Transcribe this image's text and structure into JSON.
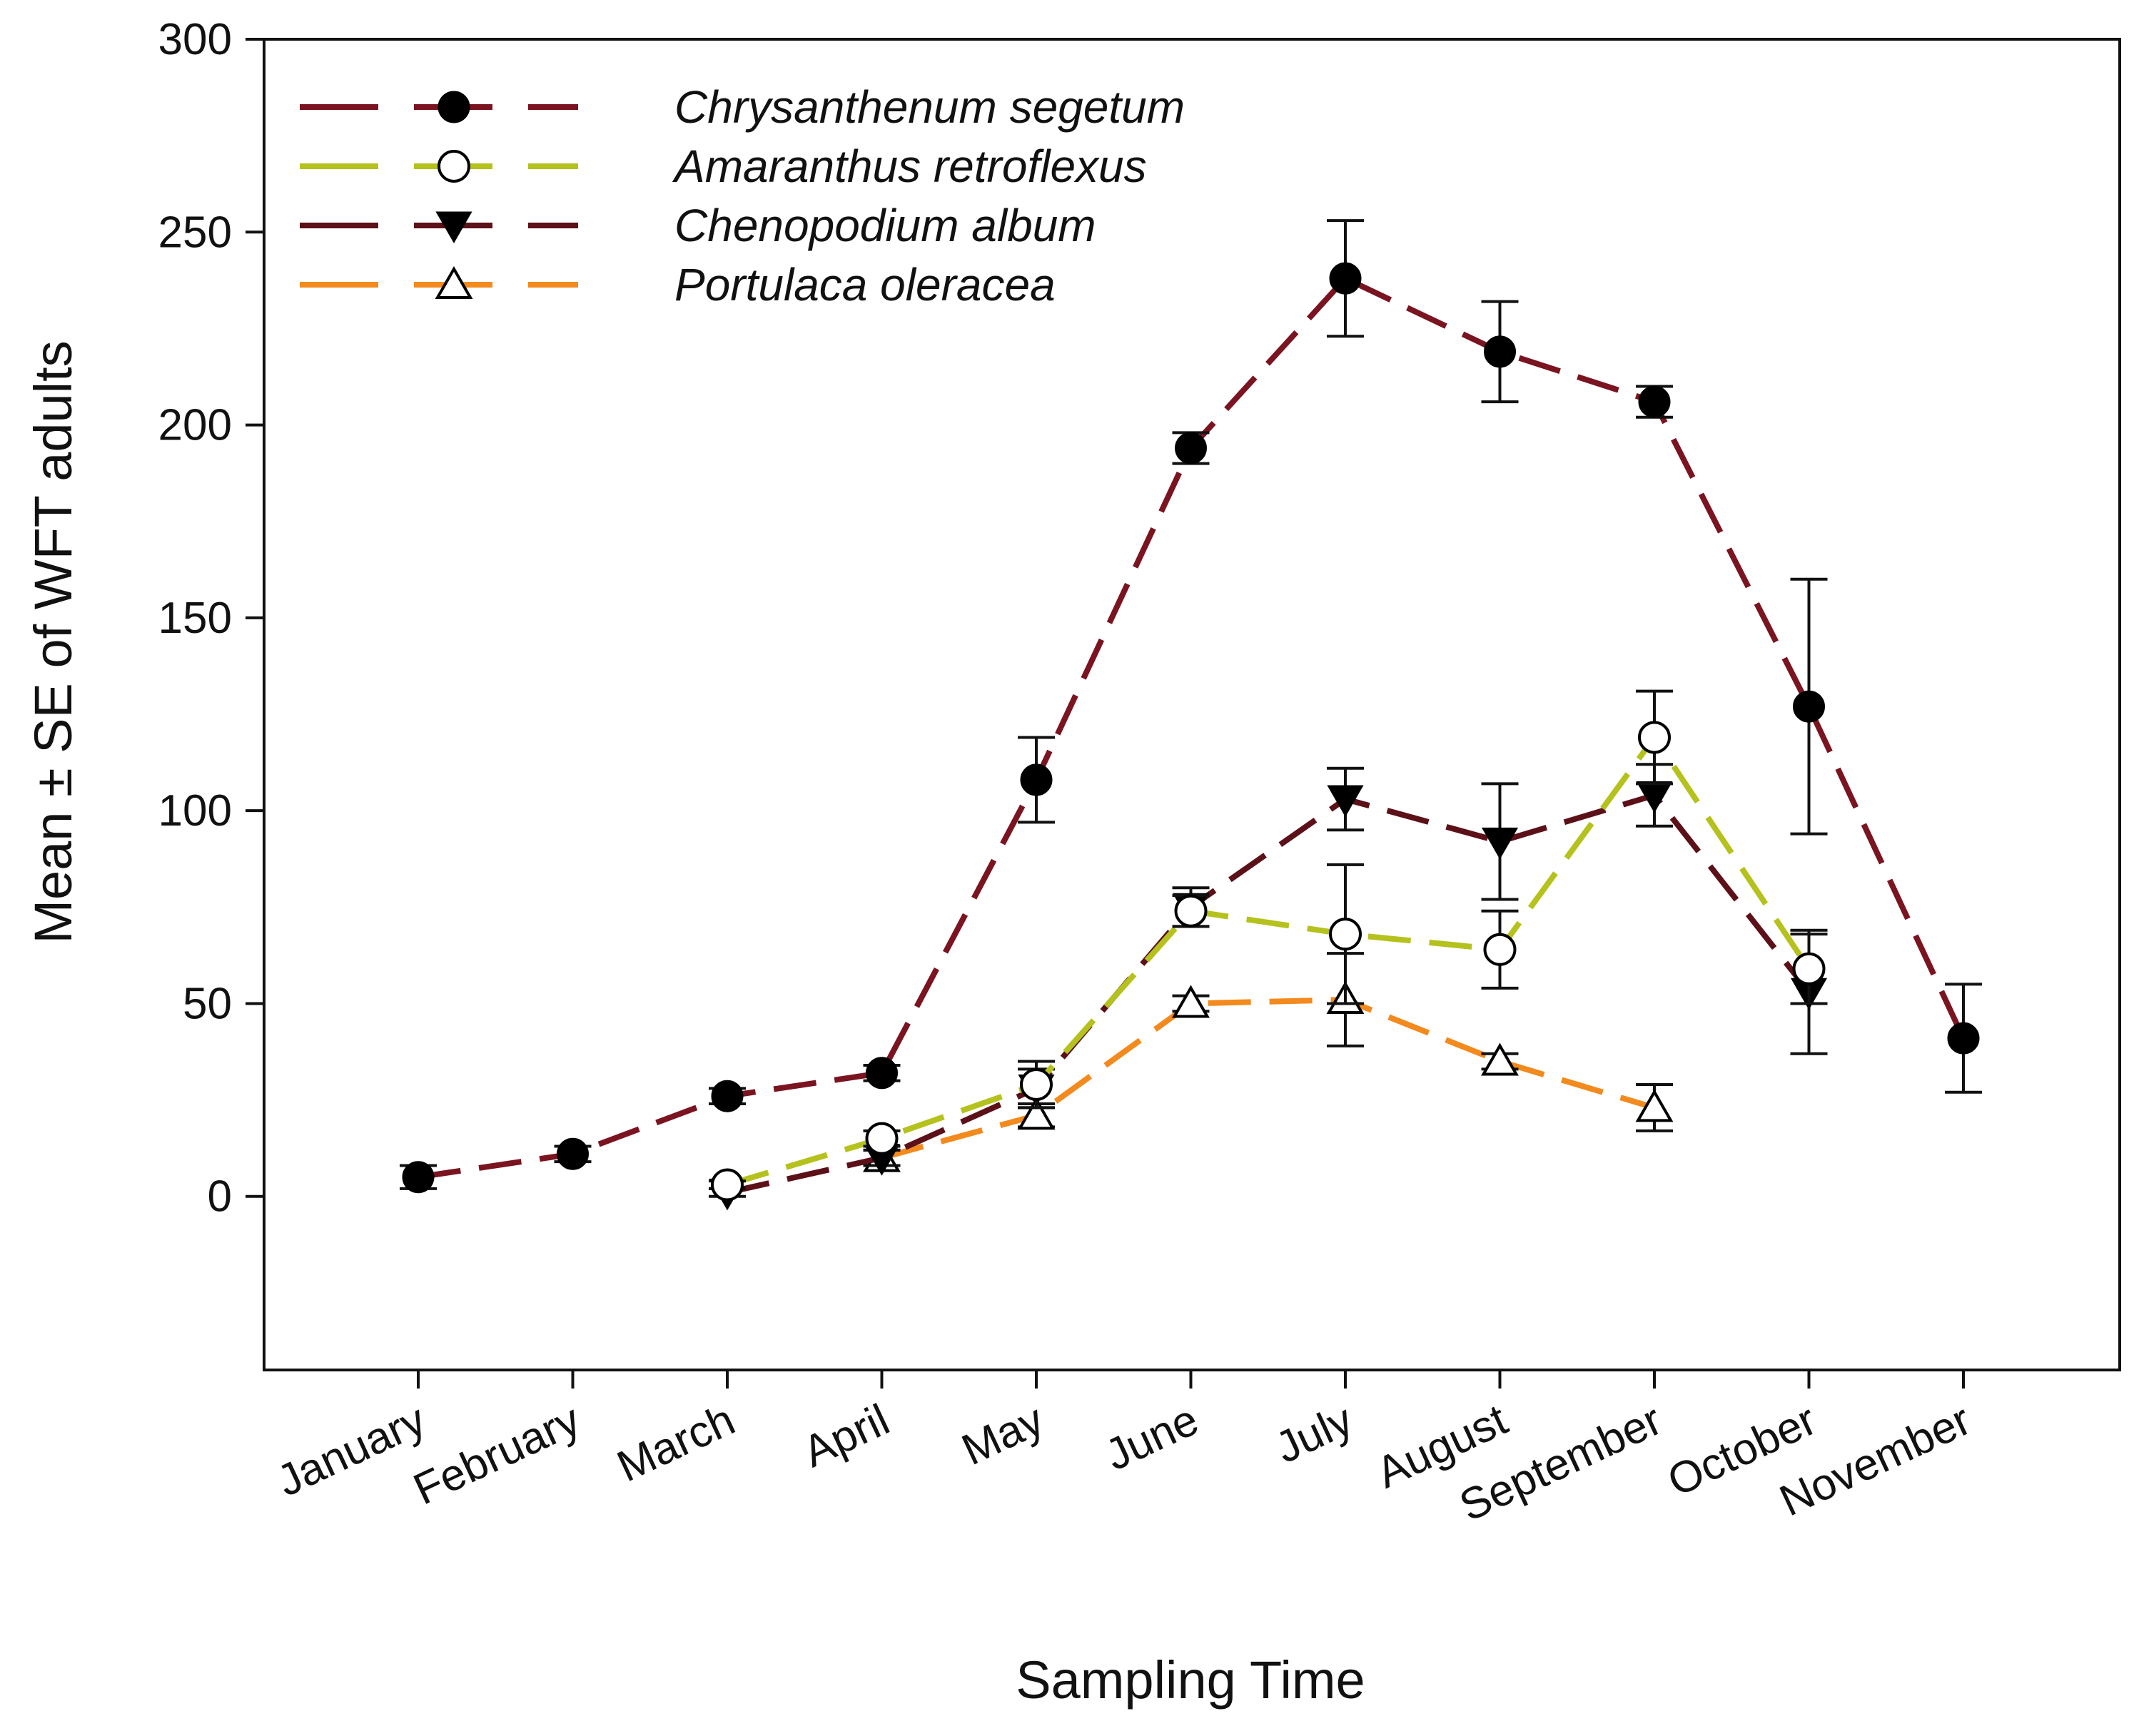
{
  "chart_data": {
    "type": "line",
    "title": "",
    "xlabel": "Sampling Time",
    "ylabel": "Mean ± SE of  WFT adults",
    "categories": [
      "January",
      "February",
      "March",
      "April",
      "May",
      "June",
      "July",
      "August",
      "September",
      "October",
      "November"
    ],
    "ylim": [
      -45,
      300
    ],
    "yticks": [
      0,
      50,
      100,
      150,
      200,
      250,
      300
    ],
    "grid": false,
    "legend_position": "top-left",
    "series": [
      {
        "name": "Chrysanthenum segetum",
        "color": "#7a1420",
        "marker": "circle-filled",
        "values": [
          5,
          11,
          26,
          32,
          108,
          194,
          238,
          219,
          206,
          127,
          41
        ],
        "errors": [
          3,
          2,
          2,
          2,
          11,
          4,
          15,
          13,
          4,
          33,
          14
        ]
      },
      {
        "name": "Amaranthus retroflexus",
        "color": "#b5c21e",
        "marker": "circle-open",
        "values": [
          null,
          null,
          3,
          15,
          29,
          74,
          68,
          64,
          119,
          59,
          null
        ],
        "errors": [
          null,
          null,
          1,
          2,
          6,
          4,
          18,
          10,
          12,
          9,
          null
        ]
      },
      {
        "name": "Chenopodium album",
        "color": "#5c1018",
        "marker": "triangle-down-filled",
        "values": [
          null,
          null,
          1,
          10,
          28,
          75,
          103,
          92,
          104,
          53,
          null
        ],
        "errors": [
          null,
          null,
          1,
          2,
          5,
          5,
          8,
          15,
          8,
          16,
          null
        ]
      },
      {
        "name": "Portulaca oleracea",
        "color": "#f28a1e",
        "marker": "triangle-up-open",
        "values": [
          null,
          null,
          null,
          10,
          21,
          50,
          51,
          35,
          23,
          null,
          null
        ],
        "errors": [
          null,
          null,
          null,
          2,
          3,
          2,
          12,
          2,
          6,
          null,
          null
        ]
      }
    ]
  }
}
